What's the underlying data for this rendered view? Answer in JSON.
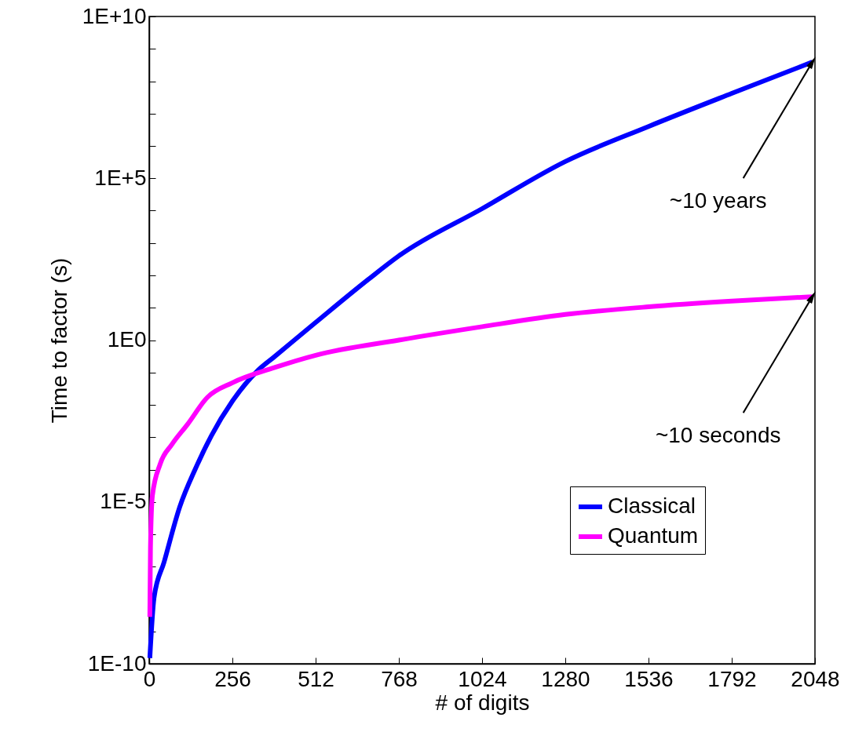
{
  "chart_data": {
    "type": "line",
    "xlabel": "# of digits",
    "ylabel": "Time to factor (s)",
    "log": "y",
    "xlim": [
      0,
      2048
    ],
    "xticks": [
      0,
      256,
      512,
      768,
      1024,
      1280,
      1536,
      1792,
      2048
    ],
    "ylim": [
      1e-10,
      10000000000.0
    ],
    "yticks": [
      {
        "value": 1e-10,
        "label": "1E-10"
      },
      {
        "value": 1e-09,
        "label": null
      },
      {
        "value": 1e-08,
        "label": null
      },
      {
        "value": 1e-07,
        "label": null
      },
      {
        "value": 1e-06,
        "label": null
      },
      {
        "value": 1e-05,
        "label": "1E-5"
      },
      {
        "value": 0.0001,
        "label": null
      },
      {
        "value": 0.001,
        "label": null
      },
      {
        "value": 0.01,
        "label": null
      },
      {
        "value": 0.1,
        "label": null
      },
      {
        "value": 1,
        "label": "1E0"
      },
      {
        "value": 10,
        "label": null
      },
      {
        "value": 100,
        "label": null
      },
      {
        "value": 1000,
        "label": null
      },
      {
        "value": 10000.0,
        "label": null
      },
      {
        "value": 100000.0,
        "label": "1E+5"
      },
      {
        "value": 1000000.0,
        "label": null
      },
      {
        "value": 10000000.0,
        "label": null
      },
      {
        "value": 100000000.0,
        "label": null
      },
      {
        "value": 1000000000.0,
        "label": null
      },
      {
        "value": 10000000000.0,
        "label": "1E+10"
      }
    ],
    "legend": "bottom right",
    "grid": false,
    "line_style": "solid",
    "marker": "none",
    "series": [
      {
        "name": "Classical",
        "color": "#0000ff",
        "x": [
          2,
          15,
          46,
          94,
          143,
          191,
          256,
          336,
          384,
          512,
          674,
          768,
          1024,
          1280,
          1536,
          1792,
          2040
        ],
        "values": [
          1.5e-10,
          1.1e-08,
          1.4e-07,
          7e-06,
          0.00011,
          0.0011,
          0.013,
          0.12,
          0.3,
          3.5,
          75,
          400,
          11500,
          330000,
          4000000.0,
          42000000.0,
          390000000.0
        ]
      },
      {
        "name": "Quantum",
        "color": "#ff00ff",
        "x": [
          2,
          4,
          10,
          34,
          70,
          118,
          179,
          256,
          384,
          512,
          768,
          1024,
          1280,
          1536,
          1792,
          2040
        ],
        "values": [
          2.8e-09,
          4e-07,
          1.6e-05,
          0.00015,
          0.0006,
          0.0025,
          0.017,
          0.048,
          0.14,
          0.34,
          1.0,
          2.6,
          6.2,
          10.7,
          16,
          22
        ]
      }
    ],
    "annotations": [
      {
        "text": "~10 years",
        "x": 2040,
        "y": 390000000.0
      },
      {
        "text": "~10 seconds",
        "x": 2040,
        "y": 22
      }
    ]
  }
}
